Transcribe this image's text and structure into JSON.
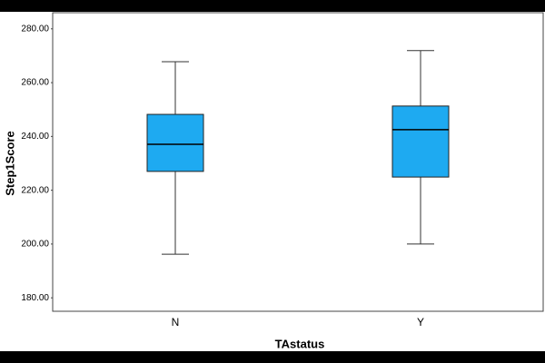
{
  "chart_data": {
    "type": "box",
    "x_label": "TAstatus",
    "y_label": "Step1Score",
    "categories": [
      "N",
      "Y"
    ],
    "color": "#1eaaf1",
    "boxes": [
      {
        "whislo": 196.2,
        "q1": 227,
        "med": 237.1,
        "q3": 248.2,
        "whishi": 267.8
      },
      {
        "whislo": 200,
        "q1": 224.9,
        "med": 242.5,
        "q3": 251.3,
        "whishi": 271.9
      }
    ],
    "ylim": [
      175,
      286
    ],
    "yticks": [
      {
        "value": 180,
        "label": "180.00"
      },
      {
        "value": 200,
        "label": "200.00"
      },
      {
        "value": 220,
        "label": "220.00"
      },
      {
        "value": 240,
        "label": "240.00"
      },
      {
        "value": 260,
        "label": "260.00"
      },
      {
        "value": 280,
        "label": "280.00"
      }
    ]
  }
}
